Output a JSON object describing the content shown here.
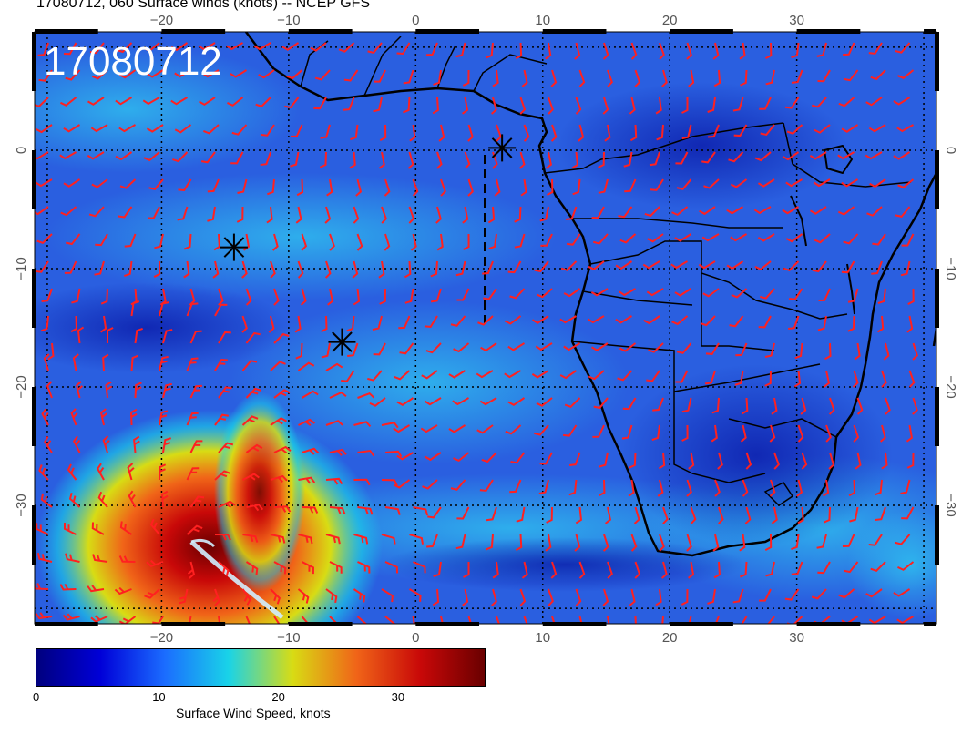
{
  "header": {
    "title": "17080712, 060 Surface winds (knots) -- NCEP GFS",
    "stamp": "17080712"
  },
  "map": {
    "lon_range": [
      -30,
      41
    ],
    "lat_range": [
      -40,
      10
    ],
    "lon_ticks": [
      -20,
      -10,
      0,
      10,
      20,
      30
    ],
    "lat_ticks": [
      0,
      -10,
      -20,
      -30
    ],
    "lon_labels": [
      "−20",
      "−10",
      "0",
      "10",
      "20",
      "30"
    ],
    "lat_labels": [
      "0",
      "−10",
      "−20",
      "−30"
    ],
    "barb_color": "#ff2020",
    "ocean_base_color": "#2a5fe0",
    "cyclone_center": {
      "lon": -18.5,
      "lat": -33.5
    },
    "markers": [
      {
        "name": "asterisk",
        "lon": 6.8,
        "lat": 0.2
      },
      {
        "name": "asterisk",
        "lon": -14.3,
        "lat": -8.2
      },
      {
        "name": "asterisk",
        "lon": -5.8,
        "lat": -16.2
      }
    ]
  },
  "colorbar": {
    "min": 0,
    "max": 37.5,
    "ticks": [
      0,
      10,
      20,
      30
    ],
    "tick_labels": [
      "0",
      "10",
      "20",
      "30"
    ],
    "label": "Surface Wind Speed, knots",
    "colors": [
      "#00007f",
      "#0000d8",
      "#1b6cff",
      "#19d3e8",
      "#d8dc14",
      "#f06418",
      "#c80808",
      "#6a0000"
    ]
  }
}
